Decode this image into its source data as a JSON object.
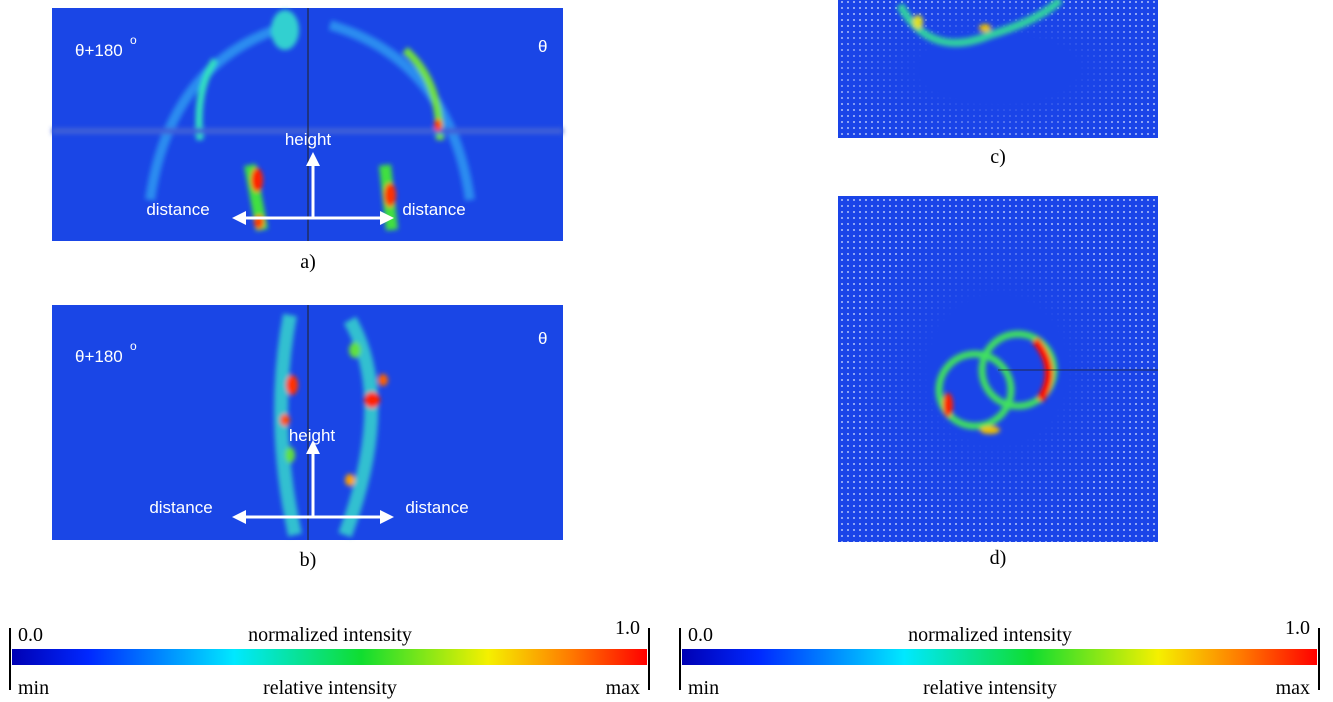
{
  "panels": [
    {
      "label": "a)",
      "left_angle": "θ+180",
      "degree": "o",
      "right_angle": "θ",
      "vertical_arrow": "height",
      "left_arrow": "distance",
      "right_arrow": "distance"
    },
    {
      "label": "b)",
      "left_angle": "θ+180",
      "degree": "o",
      "right_angle": "θ",
      "vertical_arrow": "height",
      "left_arrow": "distance",
      "right_arrow": "distance"
    },
    {
      "label": "c)"
    },
    {
      "label": "d)"
    }
  ],
  "colorbars": [
    {
      "start": "0.0",
      "title": "normalized intensity",
      "end": "1.0",
      "min_label": "min",
      "subtitle": "relative intensity",
      "max_label": "max"
    },
    {
      "start": "0.0",
      "title": "normalized intensity",
      "end": "1.0",
      "min_label": "min",
      "subtitle": "relative intensity",
      "max_label": "max"
    }
  ]
}
